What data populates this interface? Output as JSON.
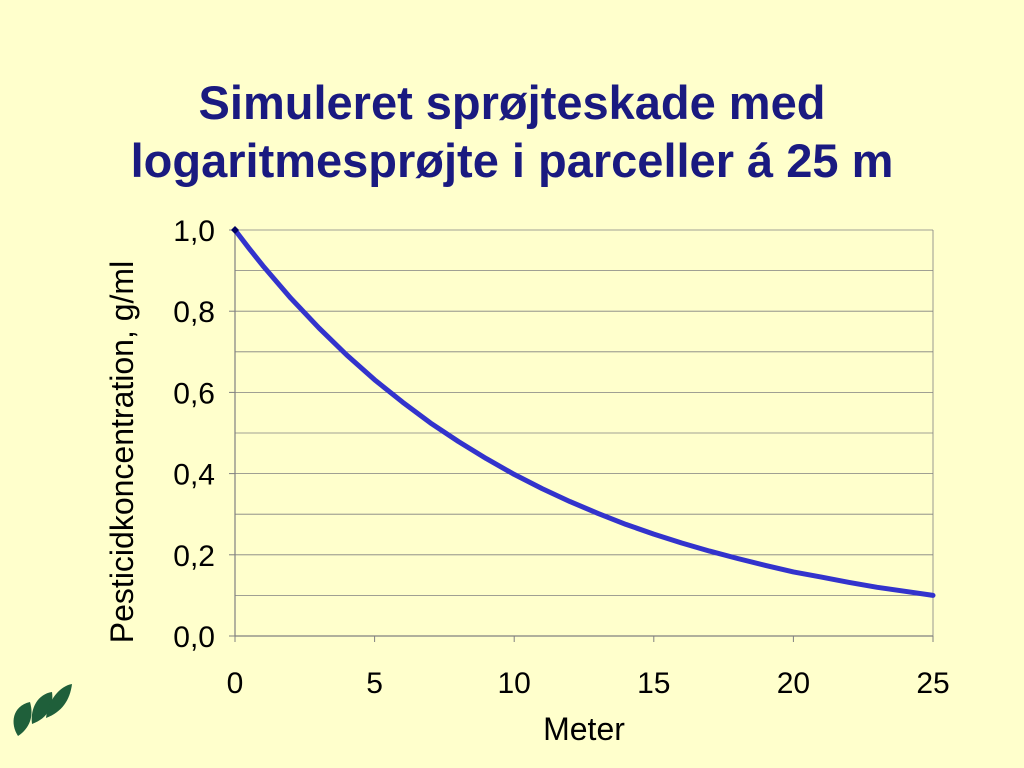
{
  "colors": {
    "background": "#ffffcc",
    "title": "#1a1a80",
    "series": "#3333cc",
    "axis": "#808080",
    "text": "#000000",
    "logo": "#1f5f3a"
  },
  "slide": {
    "title_line1": "Simuleret sprøjteskade med",
    "title_line2": "logaritmesprøjte i parceller á 25 m",
    "logo_icon": "leaf-logo-icon"
  },
  "chart_data": {
    "type": "line",
    "xlabel": "Meter",
    "ylabel": "Pesticidkoncentration, g/ml",
    "xlim": [
      0,
      25
    ],
    "ylim": [
      0,
      1
    ],
    "x_ticks": [
      0,
      5,
      10,
      15,
      20,
      25
    ],
    "x_tick_labels": [
      "0",
      "5",
      "10",
      "15",
      "20",
      "25"
    ],
    "y_ticks": [
      0,
      0.2,
      0.4,
      0.6,
      0.8,
      1.0
    ],
    "y_tick_labels": [
      "0,0",
      "0,2",
      "0,4",
      "0,6",
      "0,8",
      "1,0"
    ],
    "grid": "horizontal",
    "legend": "none",
    "series": [
      {
        "x": [
          0,
          0.5,
          1,
          2,
          3,
          4,
          5,
          6,
          7,
          8,
          9,
          10,
          11,
          12,
          13,
          14,
          15,
          16,
          17,
          18,
          19,
          20,
          21,
          22,
          23,
          24,
          25
        ],
        "values": [
          1.0,
          0.955,
          0.912,
          0.832,
          0.759,
          0.692,
          0.631,
          0.576,
          0.525,
          0.479,
          0.437,
          0.398,
          0.363,
          0.331,
          0.302,
          0.275,
          0.251,
          0.229,
          0.209,
          0.191,
          0.174,
          0.158,
          0.145,
          0.132,
          0.12,
          0.11,
          0.1
        ]
      }
    ]
  }
}
